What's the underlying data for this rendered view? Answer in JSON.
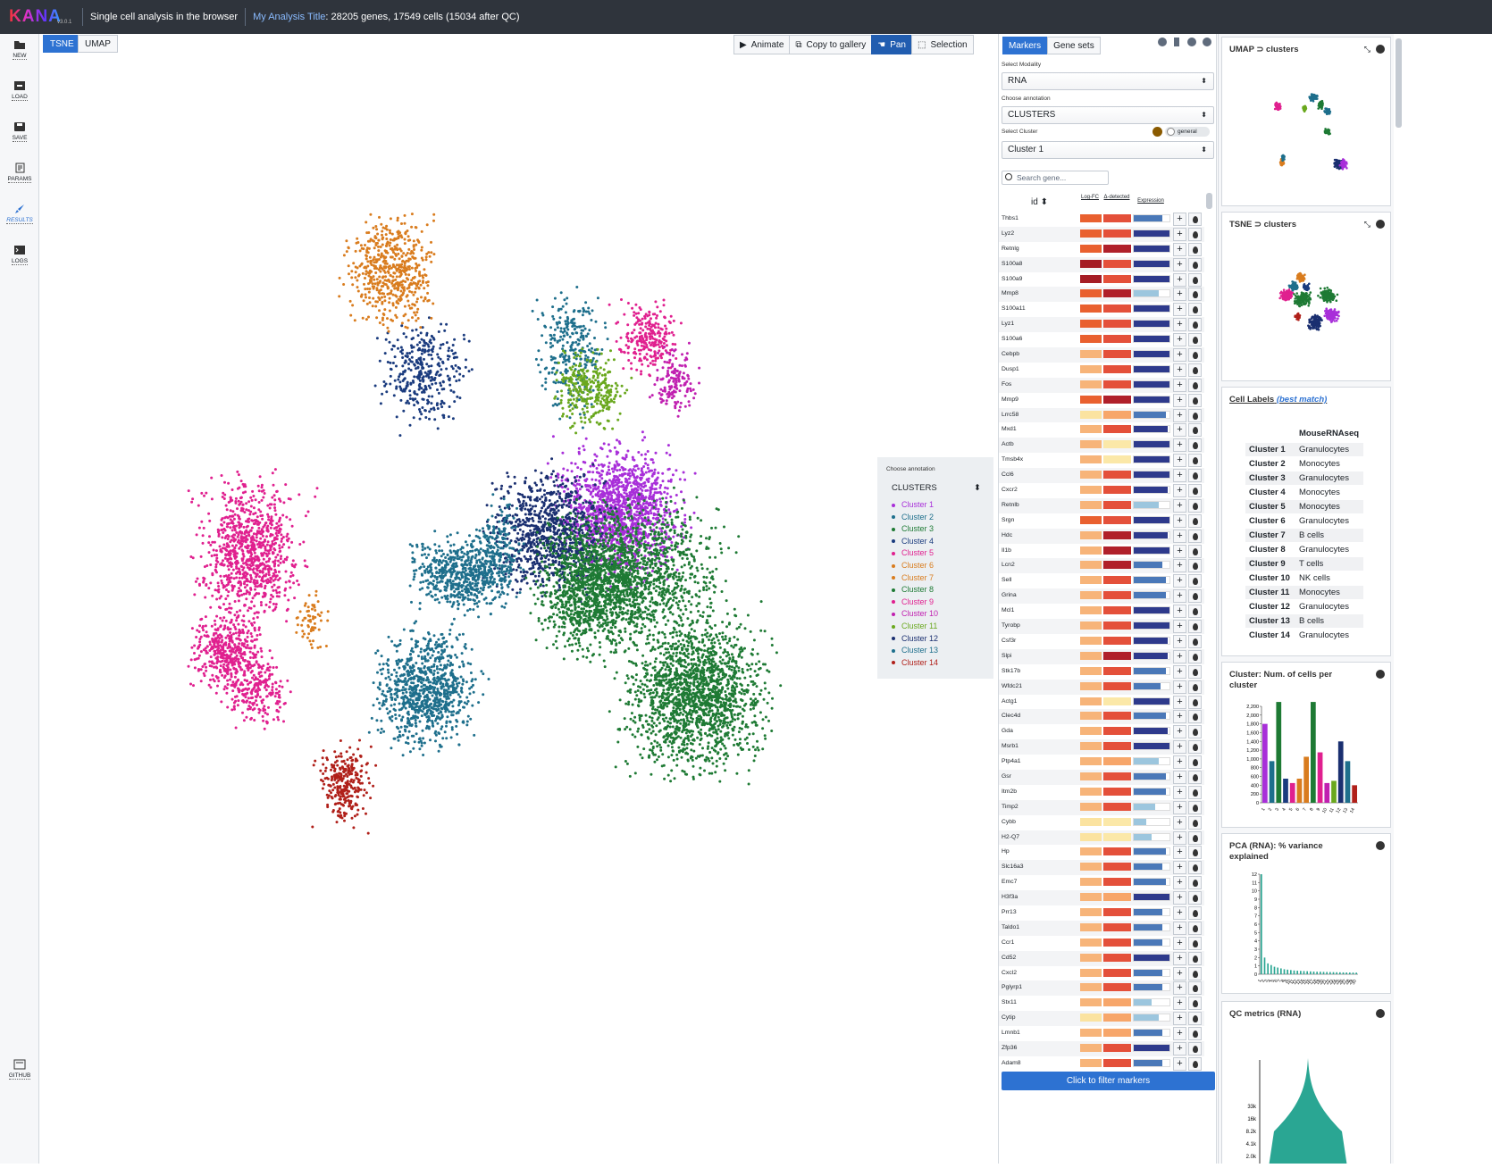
{
  "app": {
    "logo": "KANA",
    "version": "v3.0.1",
    "tagline": "Single cell analysis in the browser",
    "analysis_title": "My Analysis Title",
    "summary": ": 28205 genes, 17549 cells (15034 after QC)"
  },
  "nav": {
    "new": "NEW",
    "load": "LOAD",
    "save": "SAVE",
    "params": "PARAMS",
    "results": "RESULTS",
    "logs": "LOGS",
    "github": "GITHUB"
  },
  "embed_tabs": {
    "tsne": "TSNE",
    "umap": "UMAP"
  },
  "toolbar": {
    "animate": "Animate",
    "copy": "Copy to gallery",
    "pan": "Pan",
    "selection": "Selection"
  },
  "legend": {
    "label": "Choose annotation",
    "selected": "CLUSTERS",
    "clusters": [
      "Cluster 1",
      "Cluster 2",
      "Cluster 3",
      "Cluster 4",
      "Cluster 5",
      "Cluster 6",
      "Cluster 7",
      "Cluster 8",
      "Cluster 9",
      "Cluster 10",
      "Cluster 11",
      "Cluster 12",
      "Cluster 13",
      "Cluster 14"
    ]
  },
  "colors": {
    "c1": "#a82fd9",
    "c2": "#1e6f8c",
    "c3": "#1e7a34",
    "c4": "#1a3b7e",
    "c5": "#e0208f",
    "c6": "#d97c1e",
    "c7": "#d97c1e",
    "c8": "#1e7a34",
    "c9": "#e0208f",
    "c10": "#c020b0",
    "c11": "#6aa81e",
    "c12": "#1a2f70",
    "c13": "#1e6f8c",
    "c14": "#b0201a",
    "accent": "#2d72d2",
    "teal": "#2aa693"
  },
  "markers": {
    "tab_markers": "Markers",
    "tab_gene_sets": "Gene sets",
    "modality_label": "Select Modality",
    "modality": "RNA",
    "annotation_label": "Choose annotation",
    "annotation": "CLUSTERS",
    "cluster_label": "Select Cluster",
    "general": "general",
    "cluster": "Cluster 1",
    "search_placeholder": "Search gene...",
    "col_id": "id",
    "col_logfc": "Log-FC",
    "col_detected": "Δ-detected",
    "col_expression": "Expression",
    "filter_button": "Click to filter markers"
  },
  "genes": [
    "Thbs1",
    "Lyz2",
    "Retnlg",
    "S100a8",
    "S100a9",
    "Mmp8",
    "S100a11",
    "Lyz1",
    "S100a6",
    "Cebpb",
    "Dusp1",
    "Fos",
    "Mmp9",
    "Lrrc58",
    "Mxd1",
    "Actb",
    "Tmsb4x",
    "Ccl6",
    "Cxcr2",
    "Retnlb",
    "Srgn",
    "Hdc",
    "Il1b",
    "Lcn2",
    "Sell",
    "Grina",
    "Mcl1",
    "Tyrobp",
    "Csf3r",
    "Slpi",
    "Stk17b",
    "Wfdc21",
    "Actg1",
    "Clec4d",
    "Gda",
    "Msrb1",
    "Ptp4a1",
    "Gsr",
    "Itm2b",
    "Timp2",
    "Cybb",
    "H2-Q7",
    "Hp",
    "Slc16a3",
    "Emc7",
    "H3f3a",
    "Prr13",
    "Taldo1",
    "Ccr1",
    "Cd52",
    "Cxcl2",
    "Pglyrp1",
    "Stx11",
    "Cytip",
    "Lmnb1",
    "Zfp36",
    "Adam8"
  ],
  "gene_levels": [
    [
      2,
      2,
      0.8
    ],
    [
      2,
      2,
      1
    ],
    [
      2,
      3,
      1
    ],
    [
      3,
      2,
      1
    ],
    [
      3,
      2,
      1
    ],
    [
      2,
      3,
      0.7
    ],
    [
      2,
      2,
      1
    ],
    [
      2,
      2,
      1
    ],
    [
      2,
      2,
      1
    ],
    [
      1,
      2,
      1
    ],
    [
      1,
      2,
      1
    ],
    [
      1,
      2,
      1
    ],
    [
      2,
      3,
      1
    ],
    [
      0,
      1,
      0.9
    ],
    [
      1,
      2,
      0.95
    ],
    [
      1,
      0,
      1
    ],
    [
      1,
      0,
      1
    ],
    [
      1,
      2,
      1
    ],
    [
      1,
      2,
      0.95
    ],
    [
      1,
      2,
      0.7
    ],
    [
      2,
      2,
      1
    ],
    [
      1,
      3,
      0.95
    ],
    [
      1,
      3,
      1
    ],
    [
      1,
      3,
      0.8
    ],
    [
      1,
      2,
      0.9
    ],
    [
      1,
      2,
      0.9
    ],
    [
      1,
      2,
      1
    ],
    [
      1,
      2,
      1
    ],
    [
      1,
      2,
      0.95
    ],
    [
      1,
      3,
      0.95
    ],
    [
      1,
      2,
      0.9
    ],
    [
      1,
      2,
      0.75
    ],
    [
      1,
      0,
      1
    ],
    [
      1,
      2,
      0.9
    ],
    [
      1,
      2,
      0.95
    ],
    [
      1,
      2,
      1
    ],
    [
      1,
      1,
      0.7
    ],
    [
      1,
      2,
      0.9
    ],
    [
      1,
      2,
      0.9
    ],
    [
      1,
      2,
      0.6
    ],
    [
      0,
      0,
      0.35
    ],
    [
      0,
      0,
      0.5
    ],
    [
      1,
      2,
      0.9
    ],
    [
      1,
      2,
      0.8
    ],
    [
      1,
      2,
      0.9
    ],
    [
      1,
      1,
      1
    ],
    [
      1,
      2,
      0.8
    ],
    [
      1,
      2,
      0.8
    ],
    [
      1,
      2,
      0.8
    ],
    [
      1,
      2,
      1
    ],
    [
      1,
      2,
      0.8
    ],
    [
      1,
      2,
      0.8
    ],
    [
      1,
      1,
      0.5
    ],
    [
      0,
      1,
      0.7
    ],
    [
      1,
      1,
      0.8
    ],
    [
      1,
      2,
      1
    ],
    [
      1,
      2,
      0.8
    ]
  ],
  "right": {
    "umap_title": "UMAP ⊃ clusters",
    "tsne_title": "TSNE ⊃ clusters",
    "cell_labels_title": "Cell Labels",
    "best_match": "(best match)",
    "ref": "MouseRNAseq",
    "labels": [
      [
        "Cluster 1",
        "Granulocytes"
      ],
      [
        "Cluster 2",
        "Monocytes"
      ],
      [
        "Cluster 3",
        "Granulocytes"
      ],
      [
        "Cluster 4",
        "Monocytes"
      ],
      [
        "Cluster 5",
        "Monocytes"
      ],
      [
        "Cluster 6",
        "Granulocytes"
      ],
      [
        "Cluster 7",
        "B cells"
      ],
      [
        "Cluster 8",
        "Granulocytes"
      ],
      [
        "Cluster 9",
        "T cells"
      ],
      [
        "Cluster 10",
        "NK cells"
      ],
      [
        "Cluster 11",
        "Monocytes"
      ],
      [
        "Cluster 12",
        "Granulocytes"
      ],
      [
        "Cluster 13",
        "B cells"
      ],
      [
        "Cluster 14",
        "Granulocytes"
      ]
    ],
    "count_title": "Cluster: Num. of cells per cluster",
    "pca_title": "PCA (RNA): % variance explained",
    "qc_title": "QC metrics (RNA)"
  },
  "chart_data": [
    {
      "type": "bar",
      "title": "Cluster: Num. of cells per cluster",
      "categories": [
        "1",
        "2",
        "3",
        "4",
        "5",
        "6",
        "7",
        "8",
        "9",
        "10",
        "11",
        "12",
        "13",
        "14"
      ],
      "values": [
        1800,
        950,
        2300,
        550,
        450,
        550,
        1050,
        2300,
        1150,
        450,
        500,
        1400,
        950,
        400
      ],
      "ylim": [
        0,
        2200
      ],
      "yticks": [
        0,
        200,
        400,
        600,
        800,
        1000,
        1200,
        1400,
        1600,
        1800,
        2000,
        2200
      ]
    },
    {
      "type": "bar",
      "title": "PCA (RNA): % variance explained",
      "categories": [
        "1",
        "2",
        "3",
        "4",
        "5",
        "6",
        "7",
        "8",
        "9",
        "10",
        "11",
        "12",
        "13",
        "14",
        "15",
        "16",
        "17",
        "18",
        "19",
        "20",
        "21",
        "22",
        "23",
        "24",
        "25",
        "26",
        "27",
        "28",
        "29",
        "30"
      ],
      "values": [
        12,
        2,
        1.3,
        1.1,
        0.9,
        0.8,
        0.7,
        0.6,
        0.55,
        0.5,
        0.45,
        0.42,
        0.4,
        0.38,
        0.36,
        0.34,
        0.32,
        0.3,
        0.3,
        0.28,
        0.27,
        0.26,
        0.25,
        0.24,
        0.23,
        0.22,
        0.21,
        0.2,
        0.2,
        0.19
      ],
      "ylim": [
        0,
        12
      ],
      "yticks": [
        0,
        1,
        2,
        3,
        4,
        5,
        6,
        7,
        8,
        9,
        10,
        11,
        12
      ]
    },
    {
      "type": "area",
      "title": "QC metrics (RNA)",
      "yticks": [
        "2.0k",
        "4.1k",
        "8.2k",
        "16k",
        "33k"
      ]
    }
  ]
}
